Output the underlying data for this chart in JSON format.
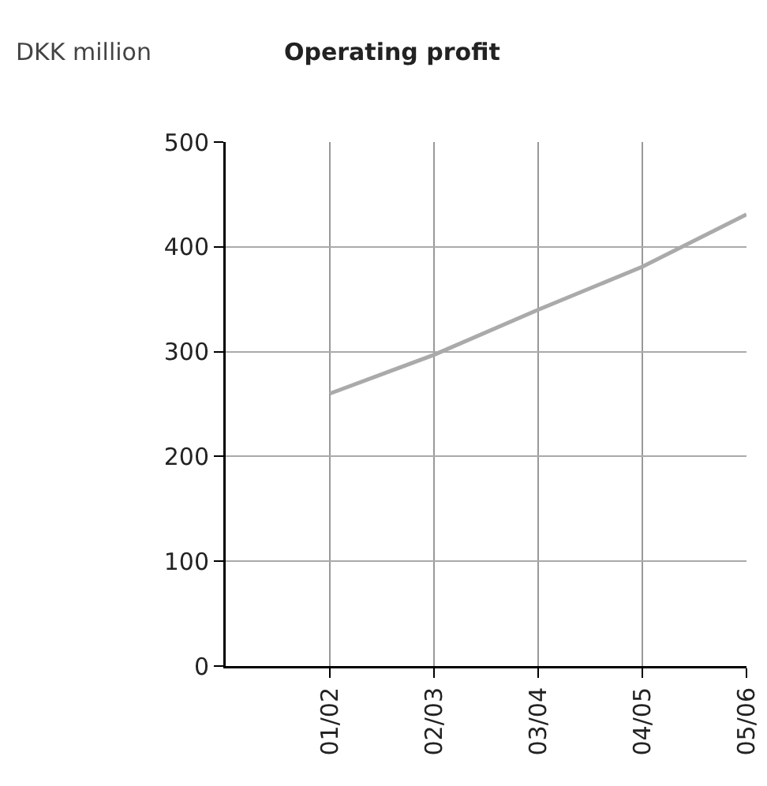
{
  "chart_data": {
    "type": "line",
    "title": "Operating profit",
    "ylabel": "DKK million",
    "categories": [
      "01/02",
      "02/03",
      "03/04",
      "04/05",
      "05/06"
    ],
    "series": [
      {
        "color": "#aaaaaa",
        "values": [
          260,
          297,
          340,
          381,
          431
        ]
      }
    ],
    "ylim": [
      0,
      500
    ],
    "yticks": [
      0,
      100,
      200,
      300,
      400,
      500
    ],
    "grid": true,
    "marker": "none",
    "line_style": "solid"
  }
}
